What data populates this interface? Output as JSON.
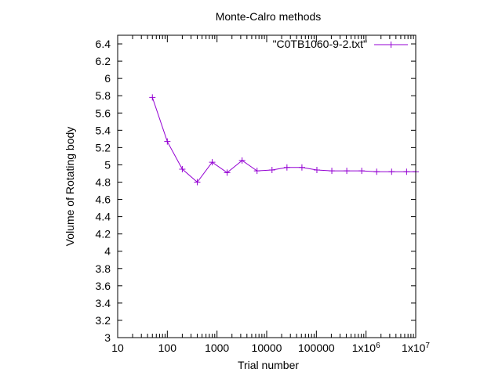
{
  "chart_data": {
    "type": "line",
    "title": "Monte-Calro methods",
    "xlabel": "Trial number",
    "ylabel": "Volume of Rotating body",
    "xscale": "log",
    "xlim": [
      10,
      10000000
    ],
    "ylim": [
      3,
      6.5
    ],
    "grid": false,
    "legend_position": "top-right",
    "line_color": "#9400d3",
    "x_ticks": [
      {
        "value": 10,
        "label": "10"
      },
      {
        "value": 100,
        "label": "100"
      },
      {
        "value": 1000,
        "label": "1000"
      },
      {
        "value": 10000,
        "label": "10000"
      },
      {
        "value": 100000,
        "label": "100000"
      },
      {
        "value": 1000000,
        "label": "1x10",
        "sup": "6"
      },
      {
        "value": 10000000,
        "label": "1x10",
        "sup": "7"
      }
    ],
    "y_ticks": [
      "3",
      "3.2",
      "3.4",
      "3.6",
      "3.8",
      "4",
      "4.2",
      "4.4",
      "4.6",
      "4.8",
      "5",
      "5.2",
      "5.4",
      "5.6",
      "5.8",
      "6",
      "6.2",
      "6.4"
    ],
    "series": [
      {
        "name": "\"C0TB1060-9-2.txt\"",
        "x": [
          50,
          100,
          200,
          400,
          800,
          1600,
          3200,
          6400,
          12800,
          25600,
          51200,
          102400,
          204800,
          409600,
          819200,
          1638400,
          3276800,
          6553600,
          10000000
        ],
        "y": [
          5.78,
          5.27,
          4.95,
          4.8,
          5.03,
          4.91,
          5.05,
          4.93,
          4.94,
          4.97,
          4.97,
          4.94,
          4.93,
          4.93,
          4.93,
          4.92,
          4.92,
          4.92,
          4.92
        ]
      }
    ]
  }
}
